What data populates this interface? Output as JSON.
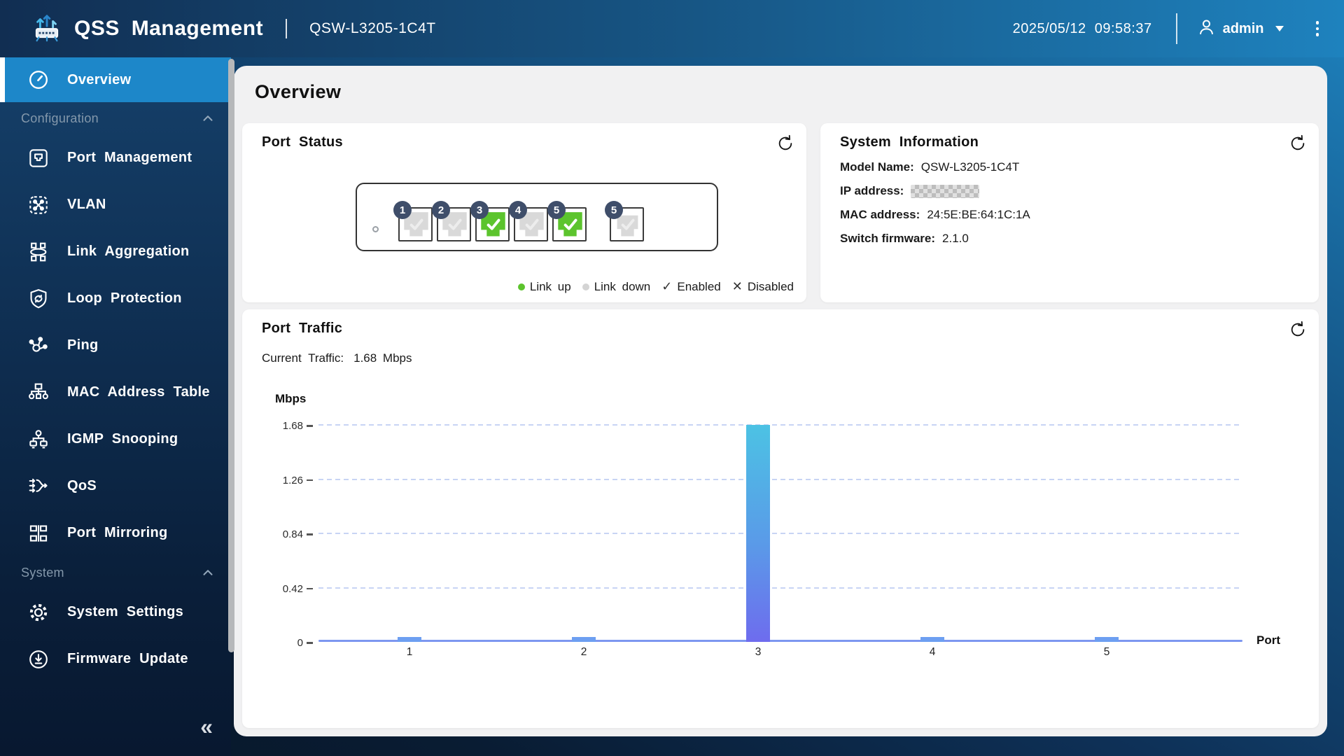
{
  "header": {
    "app_title": "QSS Management",
    "device_model": "QSW-L3205-1C4T",
    "datetime": "2025/05/12  09:58:37",
    "user": "admin"
  },
  "sidebar": {
    "overview": {
      "label": "Overview",
      "icon": "gauge-icon"
    },
    "collapse_symbol": "«",
    "sections": [
      {
        "label": "Configuration",
        "items": [
          {
            "label": "Port Management",
            "icon": "port-icon"
          },
          {
            "label": "VLAN",
            "icon": "vlan-icon"
          },
          {
            "label": "Link Aggregation",
            "icon": "link-aggregation-icon"
          },
          {
            "label": "Loop Protection",
            "icon": "shield-loop-icon"
          },
          {
            "label": "Ping",
            "icon": "ping-icon"
          },
          {
            "label": "MAC Address Table",
            "icon": "mac-table-icon"
          },
          {
            "label": "IGMP Snooping",
            "icon": "igmp-icon"
          },
          {
            "label": "QoS",
            "icon": "qos-icon"
          },
          {
            "label": "Port Mirroring",
            "icon": "port-mirroring-icon"
          }
        ]
      },
      {
        "label": "System",
        "items": [
          {
            "label": "System Settings",
            "icon": "gear-icon"
          },
          {
            "label": "Firmware Update",
            "icon": "firmware-icon"
          }
        ]
      }
    ]
  },
  "page": {
    "title": "Overview"
  },
  "port_status": {
    "title": "Port Status",
    "ports": [
      {
        "number": "1",
        "link": "down",
        "state": "enabled",
        "type": "rj45"
      },
      {
        "number": "2",
        "link": "down",
        "state": "enabled",
        "type": "rj45"
      },
      {
        "number": "3",
        "link": "up",
        "state": "enabled",
        "type": "rj45"
      },
      {
        "number": "4",
        "link": "down",
        "state": "enabled",
        "type": "rj45"
      },
      {
        "number": "5",
        "link": "up",
        "state": "enabled",
        "type": "rj45"
      },
      {
        "number": "5",
        "link": "down",
        "state": "enabled",
        "type": "sfp"
      }
    ],
    "legend": {
      "link_up_label": "Link up",
      "link_down_label": "Link down",
      "enabled_label": "Enabled",
      "disabled_label": "Disabled",
      "check_symbol": "✓",
      "cross_symbol": "✕"
    }
  },
  "system_info": {
    "title": "System Information",
    "rows": [
      {
        "label": "Model Name:",
        "value": "QSW-L3205-1C4T"
      },
      {
        "label": "IP address:",
        "value": "",
        "redacted": true
      },
      {
        "label": "MAC address:",
        "value": "24:5E:BE:64:1C:1A"
      },
      {
        "label": "Switch firmware:",
        "value": "2.1.0"
      }
    ]
  },
  "port_traffic": {
    "title": "Port Traffic",
    "current_label": "Current Traffic:",
    "current_value": "1.68 Mbps"
  },
  "chart_data": {
    "type": "bar",
    "categories": [
      "1",
      "2",
      "3",
      "4",
      "5"
    ],
    "values": [
      0.02,
      0.02,
      1.68,
      0.02,
      0.02
    ],
    "title": "Port Traffic",
    "xlabel": "Port",
    "ylabel": "Mbps",
    "yticks": [
      0,
      0.42,
      0.84,
      1.26,
      1.68
    ],
    "ylim": [
      0,
      1.68
    ],
    "grid": "horizontal-dashed",
    "legend_position": "none",
    "bar_color_top": "#4cc2e4",
    "bar_color_bottom": "#6e6cee",
    "small_bar_color": "#6d9ff1",
    "axis_color": "#7d97f0"
  },
  "colors": {
    "accent_active": "#1d87c9",
    "header_gradient_start": "#112e52",
    "header_gradient_end": "#1e82be",
    "link_up_green": "#5cc42d",
    "link_down_gray": "#d9d9d9",
    "badge_navy": "#3f4e6a",
    "panel_bg": "#f1f1f2"
  }
}
